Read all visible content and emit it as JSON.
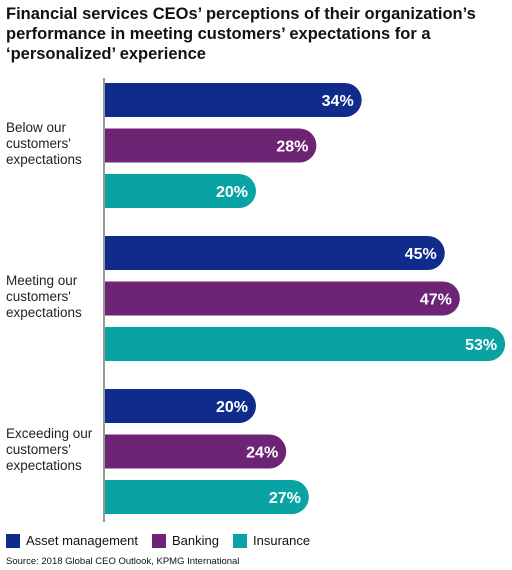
{
  "title": "Financial services CEOs’ perceptions of their organization’s performance in meeting customers’ expectations for a ‘personalized’ experience",
  "source": "Source: 2018 Global CEO Outlook, KPMG International",
  "colors": {
    "asset_management": "#0f2b8c",
    "banking": "#6e2475",
    "insurance": "#0aa3a3",
    "axis": "#333333"
  },
  "chart_data": {
    "type": "bar",
    "orientation": "horizontal",
    "categories": [
      "Below our\ncustomers'\nexpectations",
      "Meeting our\ncustomers'\nexpectations",
      "Exceeding our\ncustomers'\nexpectations"
    ],
    "series": [
      {
        "name": "Asset management",
        "values": [
          34,
          45,
          20
        ],
        "labels": [
          "34%",
          "45%",
          "20%"
        ]
      },
      {
        "name": "Banking",
        "values": [
          28,
          47,
          24
        ],
        "labels": [
          "28%",
          "47%",
          "24%"
        ]
      },
      {
        "name": "Insurance",
        "values": [
          20,
          53,
          27
        ],
        "labels": [
          "20%",
          "53%",
          "27%"
        ]
      }
    ],
    "xlim": [
      0,
      53
    ],
    "grid": false,
    "legend_position": "bottom-left",
    "value_unit": "%"
  }
}
